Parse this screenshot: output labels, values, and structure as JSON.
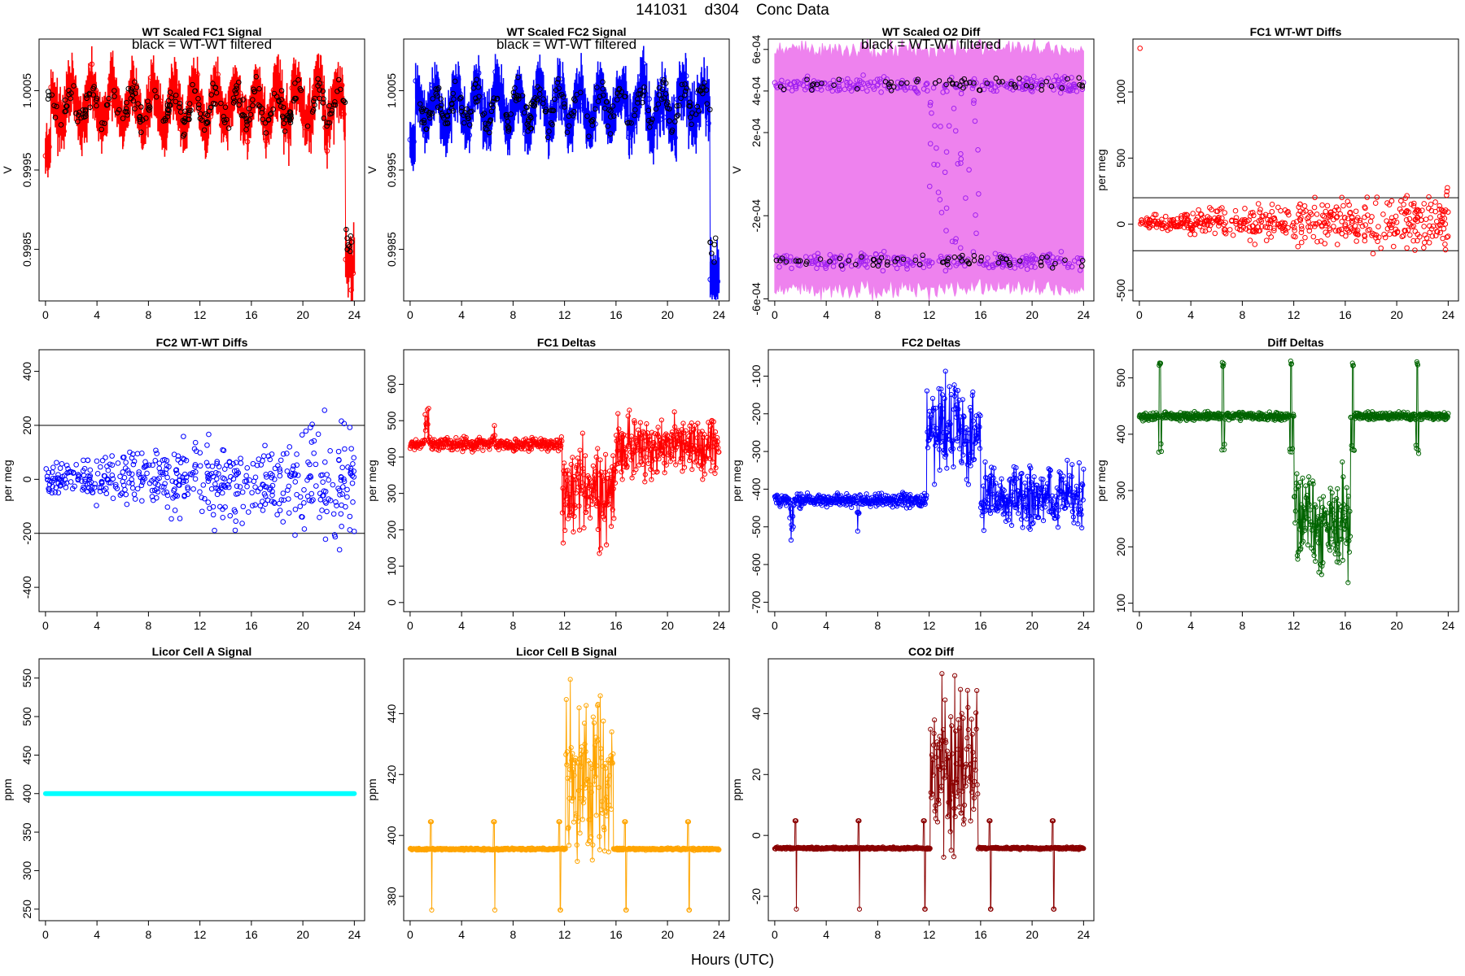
{
  "header": {
    "title": "141031    d304    Conc Data"
  },
  "footer": {
    "xlabel": "Hours (UTC)"
  },
  "colors": {
    "red": "#ff0000",
    "blue": "#0000ff",
    "violet": "#ee82ee",
    "purple": "#a020f0",
    "darkgreen": "#006400",
    "cyan": "#00ffff",
    "orange": "#ffa500",
    "darkred": "#8b0000",
    "black": "#000000"
  },
  "chart_data": [
    {
      "id": "fc1-signal",
      "type": "line",
      "title": "WT Scaled FC1 Signal",
      "annotation": "black = WT-WT filtered",
      "ylabel": "V",
      "xlim": [
        -0.5,
        24.8
      ],
      "ylim": [
        0.99785,
        1.00115
      ],
      "yticks": [
        0.9985,
        0.9995,
        1.0005
      ],
      "ytick_labels": [
        "0.9985",
        "0.9995",
        "1.0005"
      ],
      "xticks": [
        0,
        4,
        8,
        12,
        16,
        20,
        24
      ],
      "series": [
        {
          "name": "FC1 signal",
          "color": "red",
          "style": "band",
          "gen": "signal",
          "base": 1.0003,
          "amp": 0.00025,
          "noise": 0.00025,
          "start": 0.9998,
          "drop": 0.9983,
          "spike_low": 0.9979
        },
        {
          "name": "WT-WT filtered",
          "color": "black",
          "style": "points",
          "gen": "signal_pts",
          "base": 1.0003,
          "amp": 0.0002,
          "noise": 0.0002
        }
      ]
    },
    {
      "id": "fc2-signal",
      "type": "line",
      "title": "WT Scaled FC2 Signal",
      "annotation": "black = WT-WT filtered",
      "ylabel": "V",
      "xlim": [
        -0.5,
        24.8
      ],
      "ylim": [
        0.99785,
        1.00115
      ],
      "yticks": [
        0.9985,
        0.9995,
        1.0005
      ],
      "ytick_labels": [
        "0.9985",
        "0.9995",
        "1.0005"
      ],
      "xticks": [
        0,
        4,
        8,
        12,
        16,
        20,
        24
      ],
      "series": [
        {
          "name": "FC2 signal",
          "color": "blue",
          "style": "band",
          "gen": "signal",
          "base": 1.0003,
          "amp": 0.00025,
          "noise": 0.00025,
          "start": 0.9998,
          "drop": 0.9982,
          "spike_low": 0.9979
        },
        {
          "name": "WT-WT filtered",
          "color": "black",
          "style": "points",
          "gen": "signal_pts",
          "base": 1.0003,
          "amp": 0.0002,
          "noise": 0.0002
        }
      ]
    },
    {
      "id": "o2-diff",
      "type": "line",
      "title": "WT Scaled O2 Diff",
      "annotation": "black = WT-WT filtered",
      "ylabel": "V",
      "xlim": [
        -0.5,
        24.8
      ],
      "ylim": [
        -0.00061,
        0.00065
      ],
      "yticks": [
        -0.0006,
        -0.0002,
        0.0002,
        0.0004,
        0.0006
      ],
      "ytick_labels": [
        "-6e-04",
        "-2e-04",
        "2e-04",
        "4e-04",
        "6e-04"
      ],
      "xticks": [
        0,
        4,
        8,
        12,
        16,
        20,
        24
      ],
      "series": [
        {
          "name": "O2 diff band",
          "color": "violet",
          "style": "fill",
          "gen": "o2band",
          "upper": 0.00048,
          "lower": -0.00043
        },
        {
          "name": "O2 diff points",
          "color": "purple",
          "style": "points",
          "gen": "o2pts",
          "upper": 0.00043,
          "lower": -0.00042
        },
        {
          "name": "WT-WT filtered",
          "color": "black",
          "style": "points",
          "gen": "o2black",
          "upper": 0.00043,
          "lower": -0.00042
        }
      ]
    },
    {
      "id": "fc1-wtwt",
      "type": "scatter",
      "title": "FC1 WT-WT Diffs",
      "ylabel": "per meg",
      "xlim": [
        -0.5,
        24.8
      ],
      "ylim": [
        -580,
        1400
      ],
      "yticks": [
        -500,
        0,
        500,
        1000
      ],
      "ytick_labels": [
        "-500",
        "0",
        "500",
        "1000"
      ],
      "xticks": [
        0,
        4,
        8,
        12,
        16,
        20,
        24
      ],
      "hlines": [
        200,
        -200
      ],
      "series": [
        {
          "name": "FC1 WT-WT",
          "color": "red",
          "style": "points",
          "gen": "scatter",
          "center": 10,
          "spread": 35,
          "grow": 180,
          "outlier": 1330
        }
      ]
    },
    {
      "id": "fc2-wtwt",
      "type": "scatter",
      "title": "FC2 WT-WT Diffs",
      "ylabel": "per meg",
      "xlim": [
        -0.5,
        24.8
      ],
      "ylim": [
        -490,
        480
      ],
      "yticks": [
        -400,
        -200,
        0,
        200,
        400
      ],
      "ytick_labels": [
        "-400",
        "-200",
        "0",
        "200",
        "400"
      ],
      "xticks": [
        0,
        4,
        8,
        12,
        16,
        20,
        24
      ],
      "hlines": [
        200,
        -200
      ],
      "series": [
        {
          "name": "FC2 WT-WT",
          "color": "blue",
          "style": "points",
          "gen": "scatter",
          "center": 0,
          "spread": 45,
          "grow": 140,
          "outlier": 0
        }
      ]
    },
    {
      "id": "fc1-deltas",
      "type": "line",
      "title": "FC1 Deltas",
      "ylabel": "per meg",
      "xlim": [
        -0.5,
        24.8
      ],
      "ylim": [
        -25,
        695
      ],
      "yticks": [
        0,
        100,
        200,
        300,
        400,
        500,
        600
      ],
      "ytick_labels": [
        "0",
        "100",
        "200",
        "300",
        "400",
        "500",
        "600"
      ],
      "xticks": [
        0,
        4,
        8,
        12,
        16,
        20,
        24
      ],
      "series": [
        {
          "name": "FC1 delta",
          "color": "red",
          "style": "linepts",
          "gen": "delta",
          "base": 435,
          "dir": -1,
          "mid": 310,
          "late": 430,
          "noise": 15,
          "lnoise": 70
        }
      ]
    },
    {
      "id": "fc2-deltas",
      "type": "line",
      "title": "FC2 Deltas",
      "ylabel": "per meg",
      "xlim": [
        -0.5,
        24.8
      ],
      "ylim": [
        -725,
        -30
      ],
      "yticks": [
        -700,
        -600,
        -500,
        -400,
        -300,
        -200,
        -100
      ],
      "ytick_labels": [
        "-700",
        "-600",
        "-500",
        "-400",
        "-300",
        "-200",
        "-100"
      ],
      "xticks": [
        0,
        4,
        8,
        12,
        16,
        20,
        24
      ],
      "series": [
        {
          "name": "FC2 delta",
          "color": "blue",
          "style": "linepts",
          "gen": "delta",
          "base": -430,
          "dir": 1,
          "mid": -250,
          "late": -420,
          "noise": 15,
          "lnoise": 70
        }
      ]
    },
    {
      "id": "diff-deltas",
      "type": "line",
      "title": "Diff Deltas",
      "ylabel": "per meg",
      "xlim": [
        -0.5,
        24.8
      ],
      "ylim": [
        85,
        550
      ],
      "yticks": [
        100,
        200,
        300,
        400,
        500
      ],
      "ytick_labels": [
        "100",
        "200",
        "300",
        "400",
        "500"
      ],
      "xticks": [
        0,
        4,
        8,
        12,
        16,
        20,
        24
      ],
      "series": [
        {
          "name": "Diff delta",
          "color": "darkgreen",
          "style": "linepts",
          "gen": "diffdelta",
          "base": 432,
          "spike": 525,
          "low": 375,
          "mid": 240
        }
      ]
    },
    {
      "id": "licor-a",
      "type": "line",
      "title": "Licor Cell A Signal",
      "ylabel": "ppm",
      "xlim": [
        -0.5,
        24.8
      ],
      "ylim": [
        235,
        575
      ],
      "yticks": [
        250,
        300,
        350,
        400,
        450,
        500,
        550
      ],
      "ytick_labels": [
        "250",
        "300",
        "350",
        "400",
        "450",
        "500",
        "550"
      ],
      "xticks": [
        0,
        4,
        8,
        12,
        16,
        20,
        24
      ],
      "series": [
        {
          "name": "Cell A",
          "color": "cyan",
          "style": "thick",
          "gen": "flat",
          "value": 400
        }
      ]
    },
    {
      "id": "licor-b",
      "type": "line",
      "title": "Licor Cell B Signal",
      "ylabel": "ppm",
      "xlim": [
        -0.5,
        24.8
      ],
      "ylim": [
        372,
        458
      ],
      "yticks": [
        380,
        400,
        420,
        440
      ],
      "ytick_labels": [
        "380",
        "400",
        "420",
        "440"
      ],
      "xticks": [
        0,
        4,
        8,
        12,
        16,
        20,
        24
      ],
      "series": [
        {
          "name": "Cell B",
          "color": "orange",
          "style": "linepts",
          "gen": "co2",
          "base": 395.5,
          "hi": 404.5,
          "lo": 375.5,
          "mid": 418,
          "midnoise": 22,
          "cap": 458
        }
      ]
    },
    {
      "id": "co2-diff",
      "type": "line",
      "title": "CO2 Diff",
      "ylabel": "ppm",
      "xlim": [
        -0.5,
        24.8
      ],
      "ylim": [
        -28,
        58
      ],
      "yticks": [
        -20,
        0,
        20,
        40
      ],
      "ytick_labels": [
        "-20",
        "0",
        "20",
        "40"
      ],
      "xticks": [
        0,
        4,
        8,
        12,
        16,
        20,
        24
      ],
      "series": [
        {
          "name": "CO2 diff",
          "color": "darkred",
          "style": "linepts",
          "gen": "co2",
          "base": -4.2,
          "hi": 4.8,
          "lo": -24.2,
          "mid": 23,
          "midnoise": 22,
          "cap": 58
        }
      ]
    }
  ]
}
